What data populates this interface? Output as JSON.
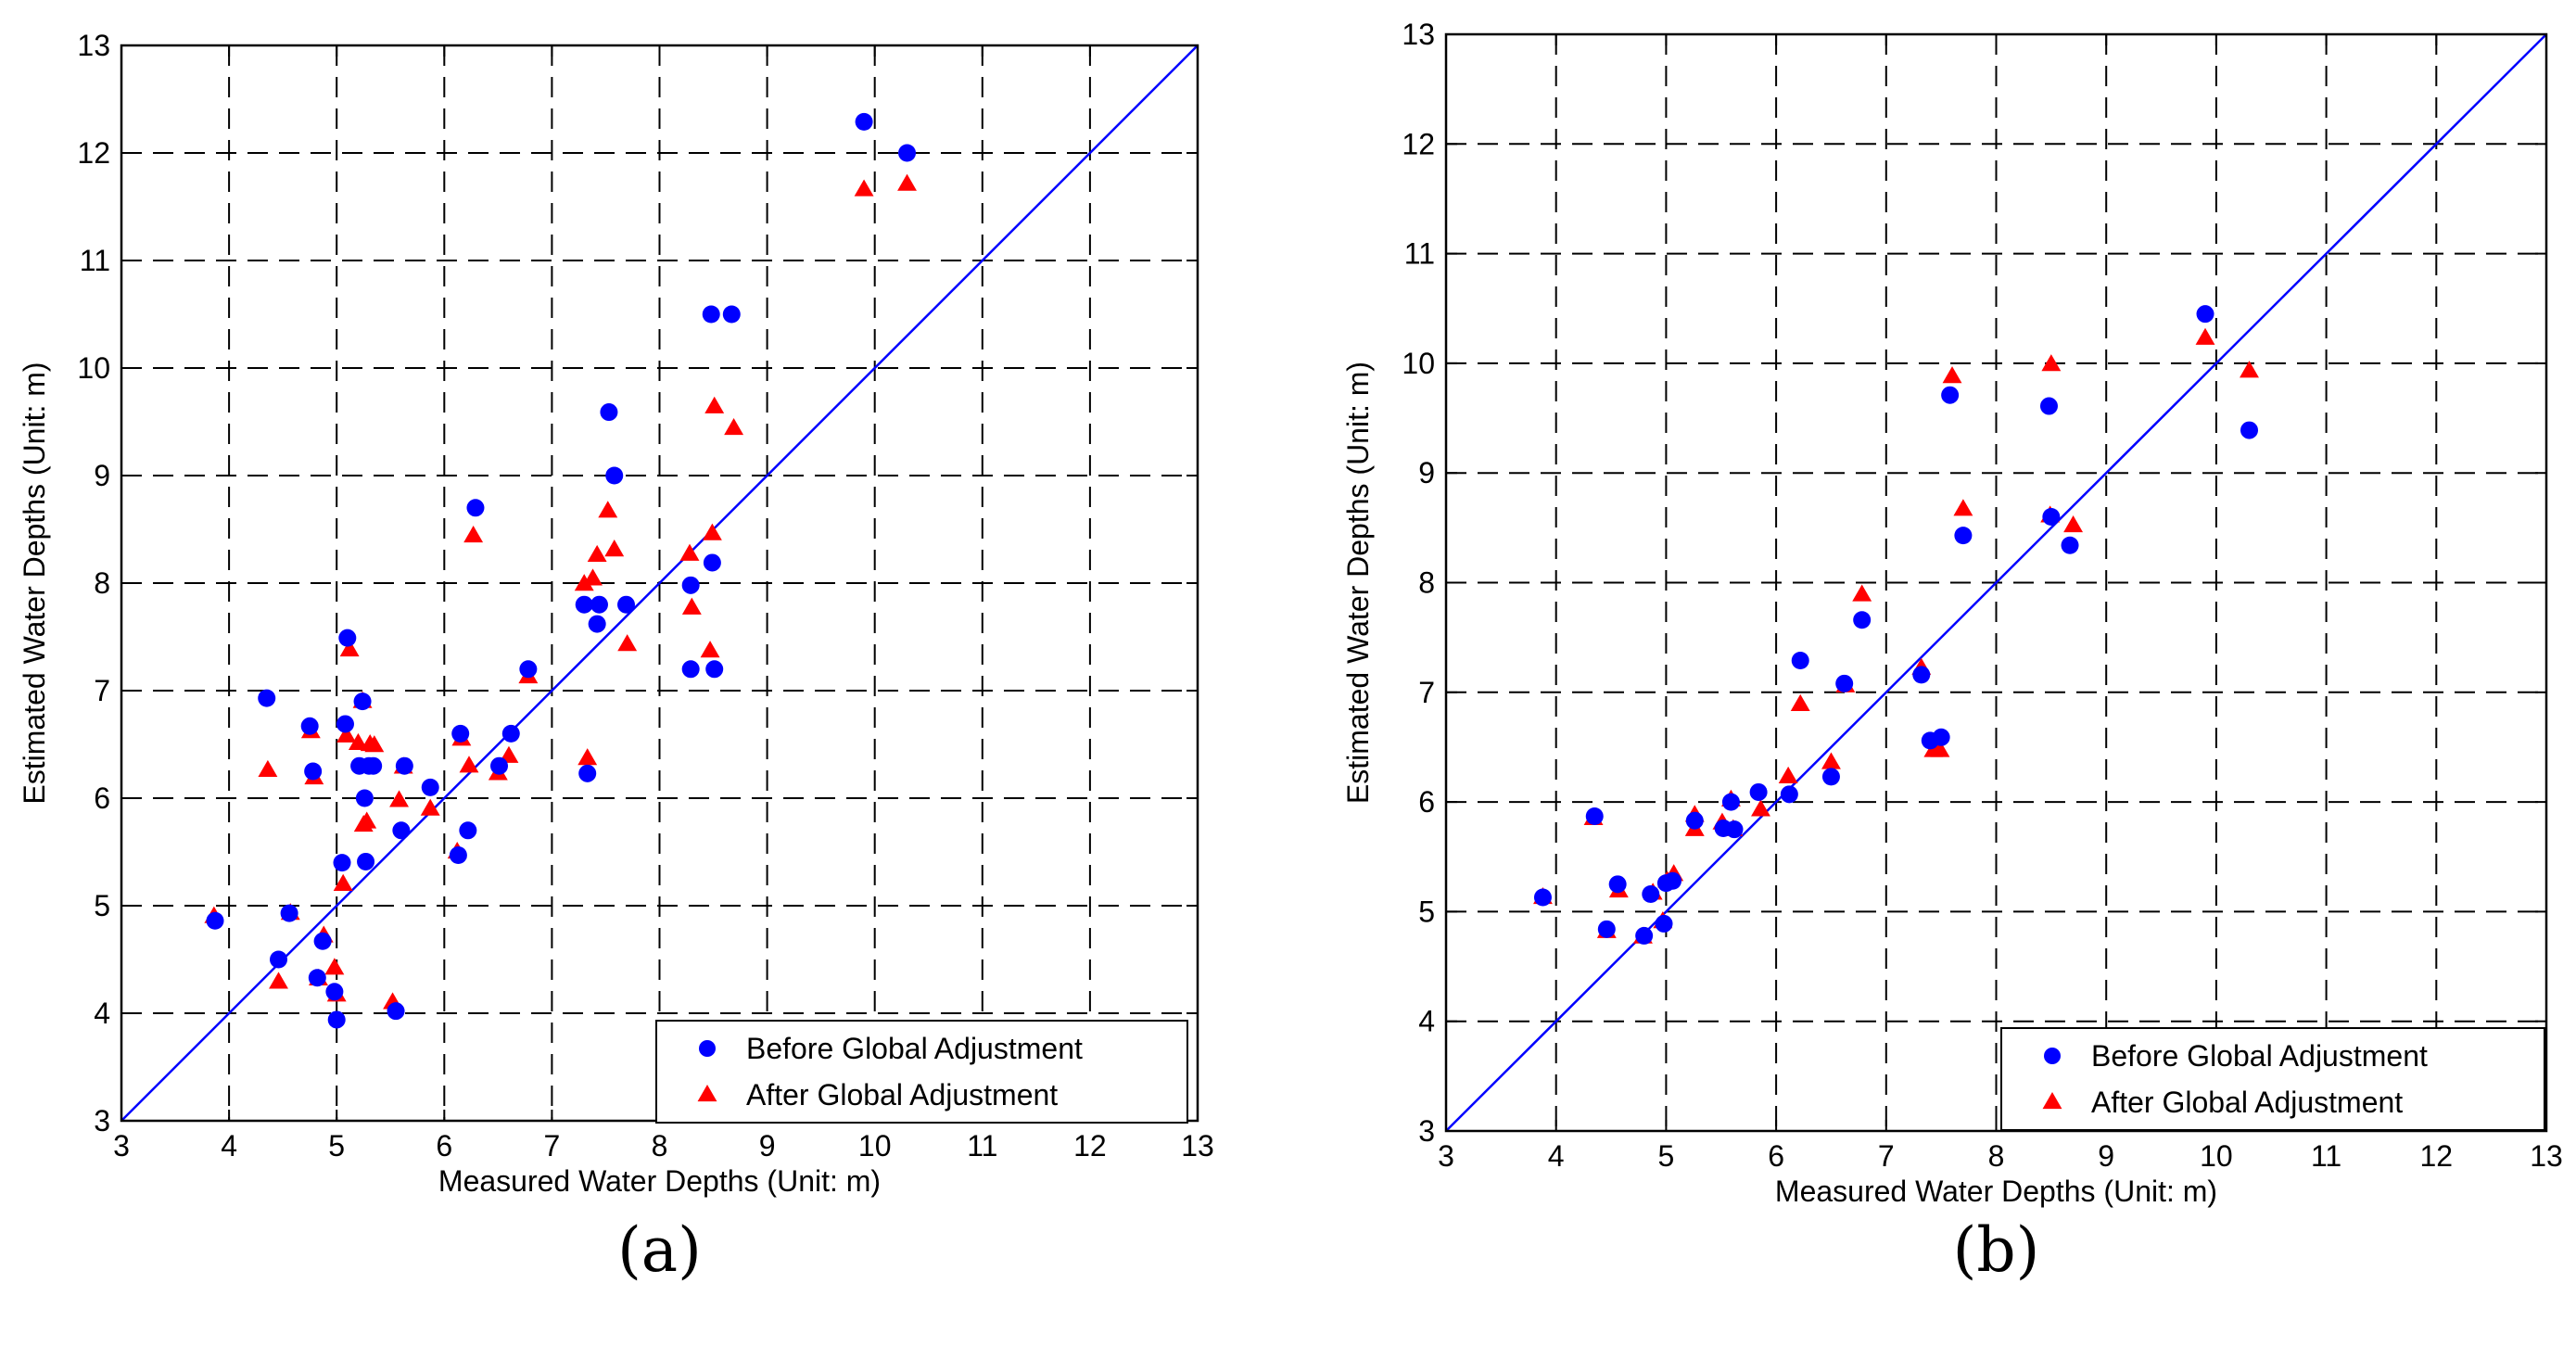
{
  "colors": {
    "before": "#0000ff",
    "after": "#ff0000",
    "identity_line": "#0000ff",
    "grid": "#000000",
    "axis": "#000000"
  },
  "chart_data": [
    {
      "type": "scatter",
      "panel_label": "(a)",
      "xlabel": "Measured Water Depths (Unit: m)",
      "ylabel": "Estimated Water Depths (Unit: m)",
      "xlim": [
        3,
        13
      ],
      "ylim": [
        3,
        13
      ],
      "xticks": [
        "3",
        "4",
        "5",
        "6",
        "7",
        "8",
        "9",
        "10",
        "11",
        "12",
        "13"
      ],
      "yticks": [
        "3",
        "4",
        "5",
        "6",
        "7",
        "8",
        "9",
        "10",
        "11",
        "12",
        "13"
      ],
      "grid": true,
      "grid_style": "dashed",
      "legend_position": "lower-right",
      "reference_line": "y = x",
      "series": [
        {
          "name": "Before Global Adjustment",
          "marker": "circle",
          "points": [
            [
              3.87,
              4.86
            ],
            [
              4.35,
              6.93
            ],
            [
              4.46,
              4.5
            ],
            [
              4.56,
              4.93
            ],
            [
              4.75,
              6.67
            ],
            [
              4.78,
              6.25
            ],
            [
              4.82,
              4.33
            ],
            [
              4.87,
              4.67
            ],
            [
              4.98,
              4.2
            ],
            [
              5.0,
              3.94
            ],
            [
              5.05,
              5.4
            ],
            [
              5.08,
              6.69
            ],
            [
              5.1,
              7.49
            ],
            [
              5.21,
              6.3
            ],
            [
              5.24,
              6.9
            ],
            [
              5.26,
              6.0
            ],
            [
              5.27,
              5.41
            ],
            [
              5.3,
              6.3
            ],
            [
              5.34,
              6.3
            ],
            [
              5.55,
              4.02
            ],
            [
              5.6,
              5.7
            ],
            [
              5.63,
              6.3
            ],
            [
              5.87,
              6.1
            ],
            [
              6.13,
              5.47
            ],
            [
              6.15,
              6.6
            ],
            [
              6.22,
              5.7
            ],
            [
              6.29,
              8.7
            ],
            [
              6.51,
              6.3
            ],
            [
              6.62,
              6.6
            ],
            [
              6.78,
              7.2
            ],
            [
              7.3,
              7.8
            ],
            [
              7.33,
              6.23
            ],
            [
              7.42,
              7.62
            ],
            [
              7.44,
              7.8
            ],
            [
              7.53,
              9.59
            ],
            [
              7.58,
              9.0
            ],
            [
              7.69,
              7.8
            ],
            [
              8.29,
              7.2
            ],
            [
              8.29,
              7.98
            ],
            [
              8.48,
              10.5
            ],
            [
              8.49,
              8.19
            ],
            [
              8.51,
              7.2
            ],
            [
              8.67,
              10.5
            ],
            [
              9.9,
              12.29
            ],
            [
              10.3,
              12.0
            ]
          ]
        },
        {
          "name": "After Global Adjustment",
          "marker": "triangle",
          "points": [
            [
              3.86,
              4.9
            ],
            [
              4.36,
              6.26
            ],
            [
              4.46,
              4.29
            ],
            [
              4.57,
              4.93
            ],
            [
              4.76,
              6.62
            ],
            [
              4.79,
              6.19
            ],
            [
              4.83,
              4.32
            ],
            [
              4.88,
              4.72
            ],
            [
              4.98,
              4.42
            ],
            [
              5.0,
              4.17
            ],
            [
              5.06,
              5.2
            ],
            [
              5.09,
              6.58
            ],
            [
              5.12,
              7.38
            ],
            [
              5.2,
              6.51
            ],
            [
              5.24,
              6.9
            ],
            [
              5.25,
              5.75
            ],
            [
              5.28,
              5.78
            ],
            [
              5.31,
              6.5
            ],
            [
              5.35,
              6.49
            ],
            [
              5.52,
              4.1
            ],
            [
              5.58,
              5.98
            ],
            [
              5.62,
              6.29
            ],
            [
              5.87,
              5.9
            ],
            [
              6.12,
              5.5
            ],
            [
              6.16,
              6.55
            ],
            [
              6.23,
              6.3
            ],
            [
              6.27,
              8.44
            ],
            [
              6.5,
              6.23
            ],
            [
              6.6,
              6.39
            ],
            [
              6.78,
              7.13
            ],
            [
              7.3,
              7.99
            ],
            [
              7.33,
              6.37
            ],
            [
              7.38,
              8.04
            ],
            [
              7.42,
              8.26
            ],
            [
              7.52,
              8.67
            ],
            [
              7.58,
              8.31
            ],
            [
              7.7,
              7.43
            ],
            [
              8.28,
              8.27
            ],
            [
              8.3,
              7.77
            ],
            [
              8.47,
              7.37
            ],
            [
              8.49,
              8.46
            ],
            [
              8.51,
              9.64
            ],
            [
              8.69,
              9.44
            ],
            [
              9.9,
              11.66
            ],
            [
              10.3,
              11.71
            ]
          ]
        }
      ]
    },
    {
      "type": "scatter",
      "panel_label": "(b)",
      "xlabel": "Measured Water Depths (Unit: m)",
      "ylabel": "Estimated Water Depths (Unit: m)",
      "xlim": [
        3,
        13
      ],
      "ylim": [
        3,
        13
      ],
      "xticks": [
        "3",
        "4",
        "5",
        "6",
        "7",
        "8",
        "9",
        "10",
        "11",
        "12",
        "13"
      ],
      "yticks": [
        "3",
        "4",
        "5",
        "6",
        "7",
        "8",
        "9",
        "10",
        "11",
        "12",
        "13"
      ],
      "grid": true,
      "grid_style": "dashed",
      "legend_position": "lower-right",
      "reference_line": "y = x",
      "series": [
        {
          "name": "Before Global Adjustment",
          "marker": "circle",
          "points": [
            [
              3.88,
              5.13
            ],
            [
              4.35,
              5.87
            ],
            [
              4.46,
              4.84
            ],
            [
              4.56,
              5.25
            ],
            [
              4.8,
              4.78
            ],
            [
              4.86,
              5.16
            ],
            [
              4.98,
              4.89
            ],
            [
              5.0,
              5.26
            ],
            [
              5.06,
              5.28
            ],
            [
              5.26,
              5.83
            ],
            [
              5.52,
              5.76
            ],
            [
              5.59,
              6.0
            ],
            [
              5.62,
              5.75
            ],
            [
              5.84,
              6.09
            ],
            [
              6.12,
              6.07
            ],
            [
              6.22,
              7.29
            ],
            [
              6.5,
              6.23
            ],
            [
              6.62,
              7.08
            ],
            [
              6.78,
              7.66
            ],
            [
              7.32,
              7.16
            ],
            [
              7.4,
              6.56
            ],
            [
              7.5,
              6.59
            ],
            [
              7.58,
              9.71
            ],
            [
              7.7,
              8.43
            ],
            [
              8.48,
              9.61
            ],
            [
              8.5,
              8.6
            ],
            [
              8.67,
              8.34
            ],
            [
              9.9,
              10.45
            ],
            [
              10.3,
              9.39
            ]
          ]
        },
        {
          "name": "After Global Adjustment",
          "marker": "triangle",
          "points": [
            [
              3.88,
              5.13
            ],
            [
              4.34,
              5.85
            ],
            [
              4.46,
              4.82
            ],
            [
              4.57,
              5.19
            ],
            [
              4.79,
              4.77
            ],
            [
              4.88,
              5.17
            ],
            [
              4.97,
              4.91
            ],
            [
              5.01,
              5.28
            ],
            [
              5.07,
              5.34
            ],
            [
              5.26,
              5.88
            ],
            [
              5.26,
              5.75
            ],
            [
              5.51,
              5.81
            ],
            [
              5.59,
              6.02
            ],
            [
              5.61,
              5.75
            ],
            [
              5.86,
              5.93
            ],
            [
              6.11,
              6.23
            ],
            [
              6.22,
              6.89
            ],
            [
              6.5,
              6.36
            ],
            [
              6.63,
              7.06
            ],
            [
              6.78,
              7.89
            ],
            [
              7.32,
              7.22
            ],
            [
              7.43,
              6.47
            ],
            [
              7.49,
              6.47
            ],
            [
              7.6,
              9.88
            ],
            [
              7.7,
              8.67
            ],
            [
              8.49,
              8.61
            ],
            [
              8.5,
              9.99
            ],
            [
              8.7,
              8.52
            ],
            [
              9.9,
              10.23
            ],
            [
              10.3,
              9.93
            ]
          ]
        }
      ]
    }
  ]
}
